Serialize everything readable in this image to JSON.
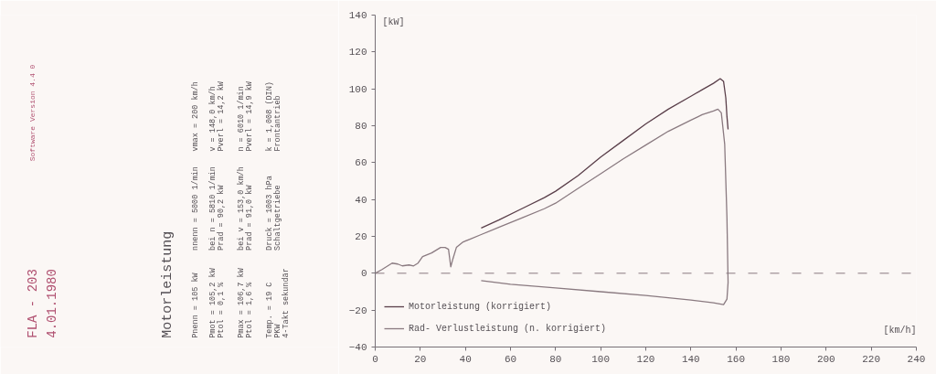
{
  "chart_data": {
    "type": "line",
    "title": "Motorleistung",
    "xlabel": "[km/h]",
    "ylabel": "[kW]",
    "xlim": [
      0,
      240
    ],
    "xticks": [
      0,
      20,
      40,
      60,
      80,
      100,
      120,
      140,
      160,
      180,
      200,
      220,
      240
    ],
    "ylim": [
      -40,
      140
    ],
    "yticks": [
      -40,
      -20,
      0,
      20,
      40,
      60,
      80,
      100,
      120,
      140
    ],
    "grid": false,
    "legend": "bottom left",
    "marker": "none",
    "line_style": "solid",
    "ref_lines": [
      {
        "axis": "y",
        "value": 0,
        "label": null,
        "color": "#8a7a80",
        "line_style": "dashed"
      }
    ],
    "series": [
      {
        "name": "Motorleistung (korrigiert)",
        "color": "#5a3f4a",
        "x": [
          47,
          55,
          65,
          75,
          80,
          90,
          100,
          110,
          120,
          130,
          140,
          145,
          150,
          153,
          154.5,
          155.5,
          156,
          156.5
        ],
        "values": [
          24.5,
          29,
          35,
          41,
          44.5,
          53,
          63,
          72,
          81,
          89,
          96,
          99.5,
          103,
          105.5,
          104,
          95,
          85,
          78
        ]
      },
      {
        "name": "Rad- Verlustleistung (n. korrigiert)",
        "color": "#8a7a80",
        "x": [
          0,
          3,
          7.5,
          10,
          12,
          15,
          17,
          19,
          21,
          25,
          29,
          31,
          32.5,
          33.5,
          34.5,
          36,
          39,
          42,
          47,
          55,
          65,
          75,
          80,
          90,
          100,
          110,
          120,
          130,
          140,
          145,
          150,
          152,
          153.5,
          155,
          156,
          156.5,
          156,
          154.5,
          150,
          140,
          120,
          100,
          80,
          60,
          47
        ],
        "values": [
          0,
          2,
          5.5,
          5,
          4,
          4.5,
          4,
          5.5,
          9,
          11,
          14,
          14,
          13,
          3.5,
          8,
          14,
          17,
          18.5,
          21,
          25,
          30,
          35,
          38,
          46,
          54,
          62,
          69.5,
          77,
          83,
          86,
          88,
          89,
          87,
          70,
          30,
          -5,
          -14,
          -17,
          -16,
          -14.5,
          -12,
          -10,
          -8,
          -6,
          -4
        ]
      }
    ],
    "annotations": [
      "FLA - 203",
      "4.01.1980",
      "Software Version 4.4 0",
      "Pnenn = 105 kW",
      "nnenn = 5000 1/min",
      "vmax = 200 km/h",
      "Pmot = 105,2 kW",
      "bei n = 5810 1/min",
      "v = 148,0 km/h",
      "Ptol = 0,1 %",
      "Prad = 90,2 kW",
      "Pverl = 14,2 kW",
      "Pmax = 106,7 kW",
      "bei v = 153,0 km/h",
      "n = 6010 1/min",
      "Ptol = 1,6 %",
      "Prad = 91,0 kW",
      "Pverl = 14,9 kW",
      "Temp. = 19 C",
      "Druck = 1003 hPa",
      "k = 1,008 (DIN)",
      "PKW",
      "Schaltgetriebe",
      "Frontantrieb",
      "4-Takt sekundär"
    ]
  }
}
